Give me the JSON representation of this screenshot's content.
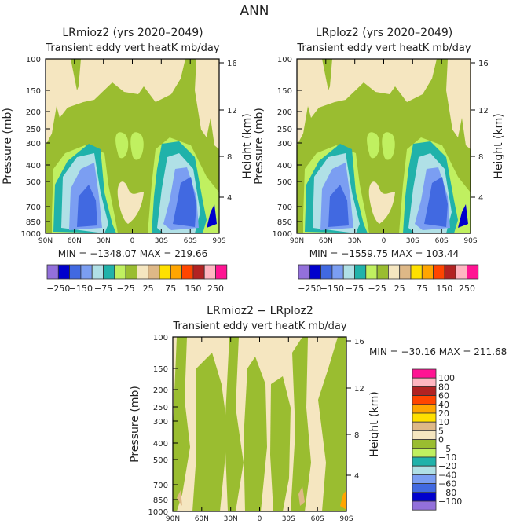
{
  "figure_title": "ANN",
  "chart_data": [
    {
      "type": "heatmap",
      "title": "LRmioz2 (yrs 2020–2049)",
      "subtitle": "Transient eddy vert heatK mb/day",
      "xlabel": "",
      "ylabel": "Pressure (mb)",
      "ylabel_right": "Height (km)",
      "x_ticks": [
        "90N",
        "60N",
        "30N",
        "0",
        "30S",
        "60S",
        "90S"
      ],
      "y_ticks": [
        "100",
        "150",
        "200",
        "250",
        "300",
        "400",
        "500",
        "700",
        "850",
        "1000"
      ],
      "y_scale": "log",
      "y_right_ticks": [
        "16",
        "12",
        "8",
        "4"
      ],
      "stats": "MIN = −1348.07   MAX = 219.66",
      "colorbar": {
        "orientation": "horizontal",
        "levels": [
          -250,
          -200,
          -150,
          -100,
          -75,
          -50,
          -25,
          0,
          25,
          50,
          75,
          100,
          150,
          200,
          250
        ],
        "labels": [
          "−250",
          "−150",
          "−75",
          "−25",
          "25",
          "75",
          "150",
          "250"
        ]
      }
    },
    {
      "type": "heatmap",
      "title": "LRploz2 (yrs 2020–2049)",
      "subtitle": "Transient eddy vert heatK mb/day",
      "xlabel": "",
      "ylabel": "Pressure (mb)",
      "ylabel_right": "Height (km)",
      "x_ticks": [
        "90N",
        "60N",
        "30N",
        "0",
        "30S",
        "60S",
        "90S"
      ],
      "y_ticks": [
        "100",
        "150",
        "200",
        "250",
        "300",
        "400",
        "500",
        "700",
        "850",
        "1000"
      ],
      "y_scale": "log",
      "y_right_ticks": [
        "16",
        "12",
        "8",
        "4"
      ],
      "stats": "MIN = −1559.75   MAX = 103.44",
      "colorbar": {
        "orientation": "horizontal",
        "levels": [
          -250,
          -200,
          -150,
          -100,
          -75,
          -50,
          -25,
          0,
          25,
          50,
          75,
          100,
          150,
          200,
          250
        ],
        "labels": [
          "−250",
          "−150",
          "−75",
          "−25",
          "25",
          "75",
          "150",
          "250"
        ]
      }
    },
    {
      "type": "heatmap",
      "title": "LRmioz2 − LRploz2",
      "subtitle": "Transient eddy vert heatK mb/day",
      "xlabel": "",
      "ylabel": "Pressure (mb)",
      "ylabel_right": "Height (km)",
      "x_ticks": [
        "90N",
        "60N",
        "30N",
        "0",
        "30S",
        "60S",
        "90S"
      ],
      "y_ticks": [
        "100",
        "150",
        "200",
        "250",
        "300",
        "400",
        "500",
        "700",
        "850",
        "1000"
      ],
      "y_scale": "log",
      "y_right_ticks": [
        "16",
        "12",
        "8",
        "4"
      ],
      "stats": "MIN = −30.16   MAX = 211.68",
      "colorbar": {
        "orientation": "vertical",
        "levels": [
          -100,
          -80,
          -60,
          -40,
          -20,
          -10,
          -5,
          0,
          5,
          10,
          20,
          40,
          60,
          80,
          100
        ],
        "labels": [
          "100",
          "80",
          "60",
          "40",
          "20",
          "10",
          "5",
          "0",
          "−5",
          "−10",
          "−20",
          "−40",
          "−60",
          "−80",
          "−100"
        ]
      }
    }
  ],
  "palette": [
    "#9370DB",
    "#0000CD",
    "#4169E1",
    "#7B9EF2",
    "#B0E0E6",
    "#20B2AA",
    "#C0F060",
    "#9ABD30",
    "#F5E6C0",
    "#DEB887",
    "#FFE000",
    "#FFA500",
    "#FF4500",
    "#B22222",
    "#FFB6C1",
    "#FF1493"
  ]
}
